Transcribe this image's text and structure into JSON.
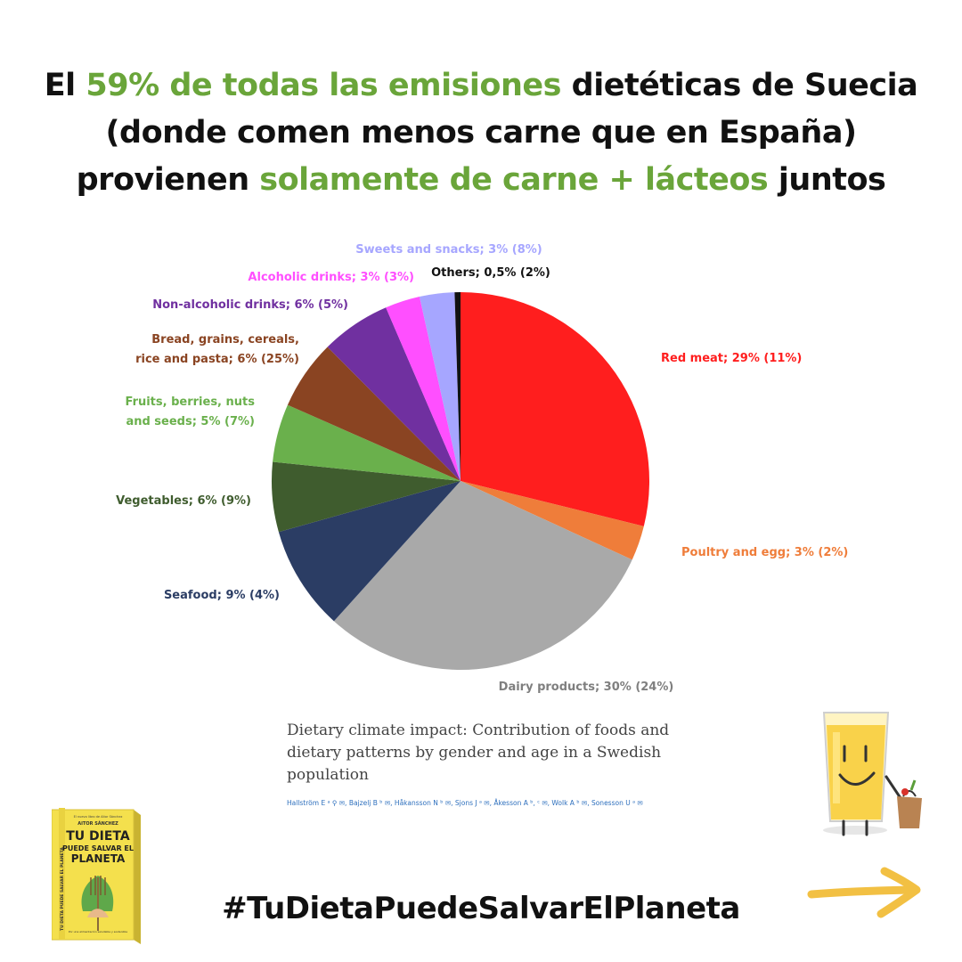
{
  "headline": {
    "lines": [
      [
        {
          "text": "El ",
          "hl": false
        },
        {
          "text": "59% de todas las emisiones",
          "hl": true
        },
        {
          "text": " dietéticas de Suecia",
          "hl": false
        }
      ],
      [
        {
          "text": "(donde comen menos carne que en España)",
          "hl": false
        }
      ],
      [
        {
          "text": "provienen ",
          "hl": false
        },
        {
          "text": "solamente de carne + lácteos",
          "hl": true
        },
        {
          "text": " juntos",
          "hl": false
        }
      ]
    ],
    "accent_color": "#6aa53a"
  },
  "chart_data": {
    "type": "pie",
    "title": "",
    "start": "12 o'clock, clockwise",
    "slices": [
      {
        "label": "Red meat; 29% (11%)",
        "value": 29,
        "color": "#ff1e1e"
      },
      {
        "label": "Poultry and egg; 3% (2%)",
        "value": 3,
        "color": "#ef7d3a"
      },
      {
        "label": "Dairy products; 30% (24%)",
        "value": 30,
        "color": "#a9a9a9"
      },
      {
        "label": "Seafood; 9% (4%)",
        "value": 9,
        "color": "#2b3d64"
      },
      {
        "label": "Vegetables; 6% (9%)",
        "value": 6,
        "color": "#3f5c2e"
      },
      {
        "label": "Fruits, berries, nuts and seeds; 5% (7%)",
        "value": 5,
        "color": "#6ab04c"
      },
      {
        "label": "Bread, grains, cereals, rice and pasta; 6% (25%)",
        "value": 6,
        "color": "#8a4422"
      },
      {
        "label": "Non-alcoholic drinks; 6% (5%)",
        "value": 6,
        "color": "#7030a0"
      },
      {
        "label": "Alcoholic drinks; 3% (3%)",
        "value": 3,
        "color": "#ff4fff"
      },
      {
        "label": "Sweets and snacks; 3% (8%)",
        "value": 3,
        "color": "#a6a6ff"
      },
      {
        "label": "Others; 0,5% (2%)",
        "value": 0.5,
        "color": "#111111"
      }
    ]
  },
  "paper": {
    "title": "Dietary climate impact: Contribution of foods and dietary patterns by gender and age in a Swedish population",
    "authors": "Hallström E ᵃ ⚲ ✉, Bajzelj B ᵇ ✉, Håkansson N ᵇ ✉, Sjons J ᵃ ✉, Åkesson A ᵇ, ᶜ ✉, Wolk A ᵇ ✉, Sonesson U ᵃ ✉"
  },
  "book": {
    "top_text": "El nuevo libro de Aitor Sánchez",
    "author": "AITOR SÁNCHEZ",
    "title_lines": [
      "TU DIETA",
      "PUEDE SALVAR EL",
      "PLANETA"
    ],
    "subtitle": "Por una alimentación saludable y sostenible",
    "spine": "TU DIETA PUEDE SALVAR EL PLANETA",
    "cover_color": "#f4e04d"
  },
  "hashtag": "#TuDietaPuedeSalvarElPlaneta",
  "icons": {
    "mascot": "smiling-juice-glass-mascot-icon",
    "arrow": "right-arrow-icon",
    "arrow_color": "#f2c043"
  }
}
